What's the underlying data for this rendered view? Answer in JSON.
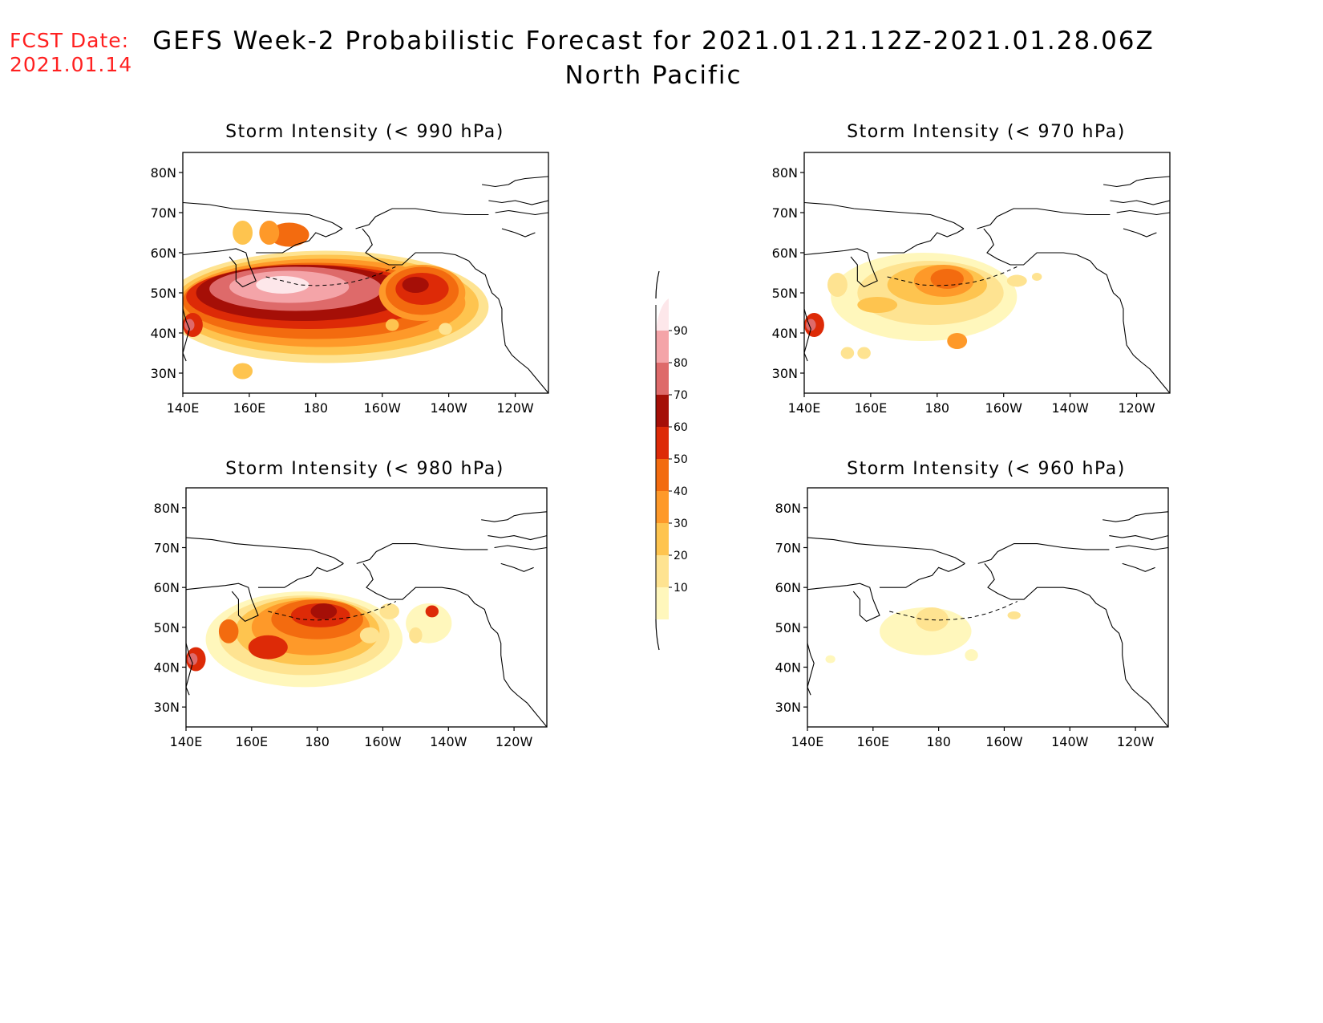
{
  "header": {
    "fcst_label": "FCST Date:",
    "fcst_date": "2021.01.14",
    "title_line1": "GEFS Week-2 Probabilistic Forecast for 2021.01.21.12Z-2021.01.28.06Z",
    "title_line2": "North Pacific"
  },
  "axes": {
    "lat_ticks": [
      "80N",
      "70N",
      "60N",
      "50N",
      "40N",
      "30N"
    ],
    "lon_ticks": [
      "140E",
      "160E",
      "180",
      "160W",
      "140W",
      "120W"
    ]
  },
  "panels": [
    {
      "id": "p990",
      "title": "Storm Intensity (< 990 hPa)"
    },
    {
      "id": "p970",
      "title": "Storm Intensity (< 970 hPa)"
    },
    {
      "id": "p980",
      "title": "Storm Intensity (< 980 hPa)"
    },
    {
      "id": "p960",
      "title": "Storm Intensity (< 960 hPa)"
    }
  ],
  "colorbar": {
    "levels": [
      "10",
      "20",
      "30",
      "40",
      "50",
      "60",
      "70",
      "80",
      "90"
    ],
    "colors": [
      "#fff7bc",
      "#fee391",
      "#fec44f",
      "#fe9929",
      "#f36b0f",
      "#dd2a07",
      "#a50f07",
      "#de6a6a",
      "#f4a4a8",
      "#fde7ea"
    ]
  },
  "chart_data": {
    "type": "heatmap",
    "units": "probability (%)",
    "extent": {
      "lon": [
        "140E",
        "120W"
      ],
      "lat": [
        "25N",
        "85N"
      ]
    },
    "panels": [
      {
        "threshold_hPa": 990,
        "max_probability": 90,
        "core_region": "40N-60N, 160E-170W"
      },
      {
        "threshold_hPa": 970,
        "max_probability": 50,
        "core_region": "50N-57N, 170E-175W"
      },
      {
        "threshold_hPa": 980,
        "max_probability": 70,
        "core_region": "45N-58N, 165E-175W"
      },
      {
        "threshold_hPa": 960,
        "max_probability": 20,
        "core_region": "48N-56N, 172E-178W"
      }
    ]
  }
}
